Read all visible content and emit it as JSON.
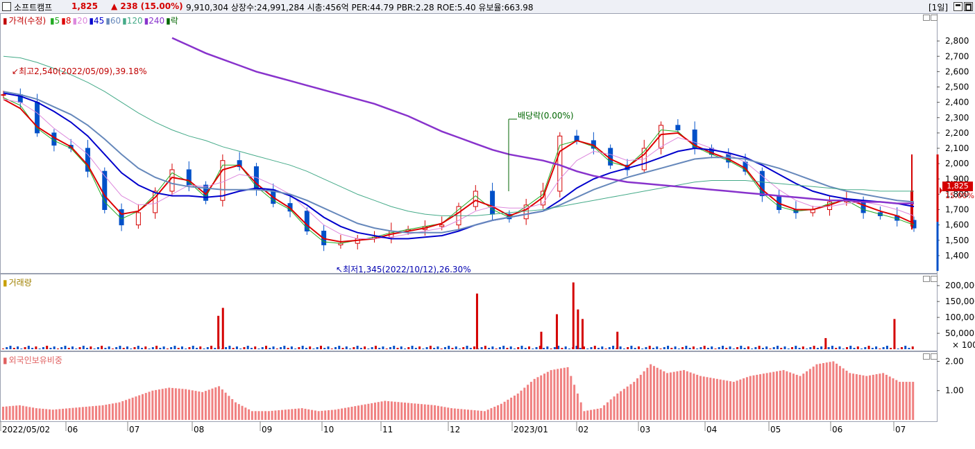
{
  "header": {
    "name": "소프트캠프",
    "price": "1,825",
    "change": "▲ 238 (15.00%)",
    "stats": "9,910,304  상장수:24,991,284 시총:456억 PER:44.79 PBR:2.28 ROE:5.40 유보율:663.98",
    "period": "[1일]"
  },
  "legend": {
    "price_title": "가격(수정)",
    "ma": [
      {
        "label": "5",
        "color": "#22aa22"
      },
      {
        "label": "8",
        "color": "#dd0000"
      },
      {
        "label": "20",
        "color": "#dd88dd"
      },
      {
        "label": "45",
        "color": "#0000cc"
      },
      {
        "label": "60",
        "color": "#6688bb"
      },
      {
        "label": "120",
        "color": "#44aa88"
      },
      {
        "label": "240",
        "color": "#8833cc"
      },
      {
        "label": "락",
        "color": "#006600"
      }
    ],
    "volume_title": "거래량",
    "foreign_title": "외국인보유비중"
  },
  "annotations": {
    "high": "최고2,540(2022/05/09),39.18%",
    "low": "최저1,345(2022/10/12),26.30%",
    "dividend": "배당락(0.00%)",
    "last_price": "1,825",
    "last_change": "15.00%"
  },
  "chart_data": [
    {
      "type": "candlestick",
      "title": "가격(수정)",
      "y_ticks": [
        "2,800",
        "2,700",
        "2,600",
        "2,500",
        "2,400",
        "2,300",
        "2,200",
        "2,100",
        "2,000",
        "1,900",
        "1,800",
        "1,700",
        "1,600",
        "1,500",
        "1,400"
      ],
      "ylim": [
        1300,
        2900
      ],
      "x_ticks": [
        "2022/05/02",
        "06",
        "07",
        "08",
        "09",
        "10",
        "11",
        "12",
        "2023/01",
        "02",
        "03",
        "04",
        "05",
        "06",
        "07"
      ],
      "close_series": [
        2450,
        2400,
        2200,
        2120,
        2100,
        1950,
        1700,
        1600,
        1680,
        1820,
        1960,
        1860,
        1760,
        2020,
        1980,
        1830,
        1740,
        1690,
        1560,
        1470,
        1480,
        1510,
        1520,
        1560,
        1570,
        1590,
        1600,
        1720,
        1820,
        1670,
        1640,
        1730,
        1820,
        2180,
        2150,
        2100,
        1990,
        1960,
        2100,
        2250,
        2220,
        2100,
        2060,
        2010,
        1950,
        1790,
        1700,
        1680,
        1700,
        1750,
        1760,
        1680,
        1660,
        1630,
        1580
      ],
      "ma_series": [
        {
          "name": "5",
          "values": [
            2430,
            2380,
            2230,
            2150,
            2100,
            1980,
            1750,
            1640,
            1690,
            1800,
            1940,
            1880,
            1780,
            1990,
            1990,
            1850,
            1760,
            1700,
            1580,
            1490,
            1480,
            1500,
            1520,
            1550,
            1570,
            1590,
            1610,
            1700,
            1790,
            1700,
            1650,
            1720,
            1800,
            2120,
            2150,
            2110,
            2010,
            1980,
            2080,
            2220,
            2210,
            2110,
            2060,
            2020,
            1960,
            1810,
            1720,
            1690,
            1700,
            1740,
            1760,
            1700,
            1670,
            1640,
            1600
          ]
        },
        {
          "name": "8",
          "values": [
            2420,
            2360,
            2240,
            2170,
            2110,
            1990,
            1790,
            1670,
            1690,
            1780,
            1910,
            1890,
            1800,
            1960,
            1990,
            1870,
            1780,
            1710,
            1600,
            1510,
            1490,
            1500,
            1510,
            1540,
            1560,
            1580,
            1610,
            1680,
            1760,
            1720,
            1660,
            1700,
            1780,
            2080,
            2150,
            2120,
            2030,
            1980,
            2060,
            2190,
            2200,
            2120,
            2070,
            2030,
            1970,
            1830,
            1740,
            1700,
            1700,
            1730,
            1770,
            1730,
            1690,
            1660,
            1610
          ]
        },
        {
          "name": "20",
          "values": [
            2420,
            2400,
            2330,
            2230,
            2150,
            2060,
            1920,
            1790,
            1730,
            1740,
            1800,
            1860,
            1850,
            1880,
            1930,
            1910,
            1860,
            1800,
            1700,
            1600,
            1540,
            1510,
            1510,
            1520,
            1540,
            1560,
            1580,
            1630,
            1690,
            1720,
            1710,
            1710,
            1740,
            1900,
            2020,
            2080,
            2060,
            2020,
            2030,
            2110,
            2170,
            2140,
            2100,
            2060,
            2010,
            1920,
            1830,
            1760,
            1720,
            1720,
            1740,
            1750,
            1730,
            1700,
            1660
          ]
        },
        {
          "name": "45",
          "values": [
            2460,
            2440,
            2400,
            2340,
            2270,
            2180,
            2060,
            1940,
            1860,
            1810,
            1790,
            1790,
            1780,
            1790,
            1820,
            1840,
            1830,
            1790,
            1730,
            1650,
            1590,
            1550,
            1530,
            1510,
            1510,
            1520,
            1530,
            1560,
            1600,
            1630,
            1650,
            1670,
            1690,
            1760,
            1840,
            1900,
            1940,
            1970,
            2000,
            2040,
            2080,
            2100,
            2090,
            2070,
            2040,
            1990,
            1930,
            1870,
            1820,
            1790,
            1770,
            1760,
            1750,
            1740,
            1720
          ]
        },
        {
          "name": "60",
          "values": [
            2470,
            2450,
            2420,
            2370,
            2320,
            2250,
            2160,
            2060,
            1970,
            1910,
            1870,
            1850,
            1840,
            1830,
            1830,
            1830,
            1820,
            1800,
            1760,
            1710,
            1660,
            1610,
            1580,
            1560,
            1550,
            1550,
            1550,
            1570,
            1600,
            1630,
            1650,
            1670,
            1690,
            1730,
            1780,
            1830,
            1870,
            1910,
            1940,
            1970,
            2000,
            2030,
            2040,
            2040,
            2030,
            2000,
            1970,
            1930,
            1890,
            1850,
            1820,
            1800,
            1780,
            1760,
            1750
          ]
        },
        {
          "name": "120",
          "values": [
            2700,
            2690,
            2660,
            2620,
            2580,
            2530,
            2470,
            2400,
            2330,
            2270,
            2220,
            2180,
            2150,
            2110,
            2080,
            2050,
            2020,
            1990,
            1950,
            1900,
            1850,
            1800,
            1760,
            1720,
            1690,
            1670,
            1660,
            1660,
            1660,
            1670,
            1680,
            1690,
            1700,
            1720,
            1740,
            1760,
            1780,
            1800,
            1820,
            1840,
            1860,
            1880,
            1890,
            1890,
            1890,
            1880,
            1870,
            1860,
            1850,
            1840,
            1830,
            1830,
            1820,
            1820,
            1820
          ]
        },
        {
          "name": "240",
          "values": [
            null,
            null,
            null,
            null,
            null,
            null,
            null,
            null,
            null,
            null,
            2820,
            2770,
            2720,
            2680,
            2640,
            2600,
            2570,
            2540,
            2510,
            2480,
            2450,
            2420,
            2390,
            2350,
            2310,
            2260,
            2210,
            2170,
            2130,
            2090,
            2060,
            2040,
            2020,
            1990,
            1950,
            1920,
            1900,
            1880,
            1870,
            1860,
            1850,
            1840,
            1830,
            1820,
            1810,
            1800,
            1790,
            1780,
            1770,
            1760,
            1760,
            1750,
            1750,
            1740,
            1740
          ]
        }
      ],
      "highlight_last": {
        "open": 1590,
        "high": 2060,
        "low": 1570,
        "close": 1825
      }
    },
    {
      "type": "bar",
      "title": "거래량",
      "y_ticks": [
        "200,000",
        "150,000",
        "100,000",
        "50,000"
      ],
      "ylim": [
        0,
        220000
      ],
      "unit_label": "× 100",
      "spikes": [
        {
          "day": 0.238,
          "value": 105000
        },
        {
          "day": 0.243,
          "value": 130000
        },
        {
          "day": 0.52,
          "value": 175000
        },
        {
          "day": 0.59,
          "value": 55000
        },
        {
          "day": 0.607,
          "value": 110000
        },
        {
          "day": 0.625,
          "value": 210000
        },
        {
          "day": 0.63,
          "value": 125000
        },
        {
          "day": 0.635,
          "value": 95000
        },
        {
          "day": 0.673,
          "value": 55000
        },
        {
          "day": 0.9,
          "value": 35000
        },
        {
          "day": 0.975,
          "value": 95000
        }
      ]
    },
    {
      "type": "bar",
      "title": "외국인보유비중",
      "y_ticks": [
        "2.00",
        "1.00"
      ],
      "ylim": [
        0,
        2.2
      ],
      "values": [
        0.45,
        0.5,
        0.4,
        0.35,
        0.4,
        0.45,
        0.5,
        0.6,
        0.8,
        1.0,
        1.1,
        1.05,
        0.95,
        1.15,
        0.6,
        0.3,
        0.3,
        0.35,
        0.4,
        0.3,
        0.35,
        0.45,
        0.55,
        0.65,
        0.6,
        0.55,
        0.5,
        0.4,
        0.35,
        0.3,
        0.55,
        0.9,
        1.4,
        1.7,
        1.8,
        0.3,
        0.4,
        0.9,
        1.3,
        1.9,
        1.6,
        1.7,
        1.5,
        1.4,
        1.3,
        1.5,
        1.6,
        1.7,
        1.5,
        1.9,
        2.0,
        1.6,
        1.5,
        1.6,
        1.3
      ]
    }
  ]
}
